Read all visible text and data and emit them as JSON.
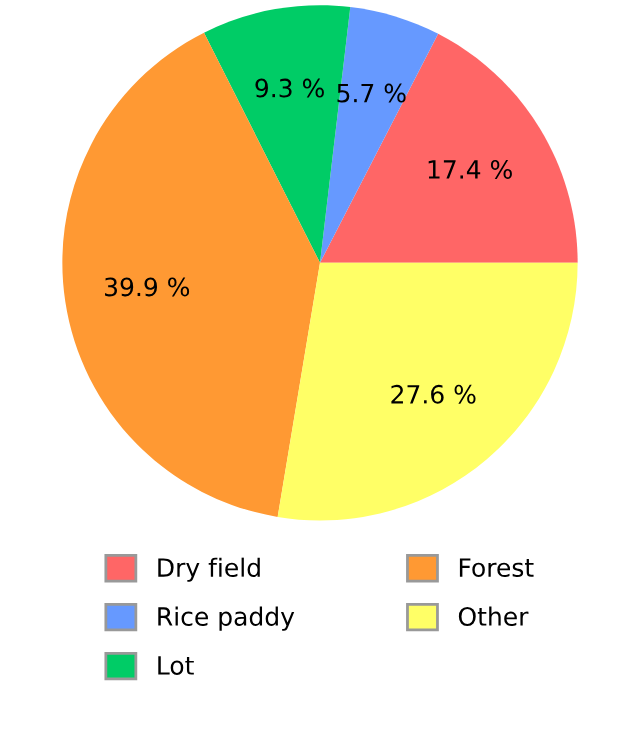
{
  "chart_data": {
    "type": "pie",
    "categories": [
      "Dry field",
      "Rice paddy",
      "Lot",
      "Forest",
      "Other"
    ],
    "values": [
      17.4,
      5.7,
      9.3,
      39.9,
      27.6
    ],
    "colors": [
      "#ff6666",
      "#6699ff",
      "#00cc66",
      "#ff9933",
      "#ffff66"
    ],
    "value_labels": [
      "17.4 %",
      "5.7 %",
      "9.3 %",
      "39.9 %",
      "27.6 %"
    ],
    "legend": "bottom"
  }
}
